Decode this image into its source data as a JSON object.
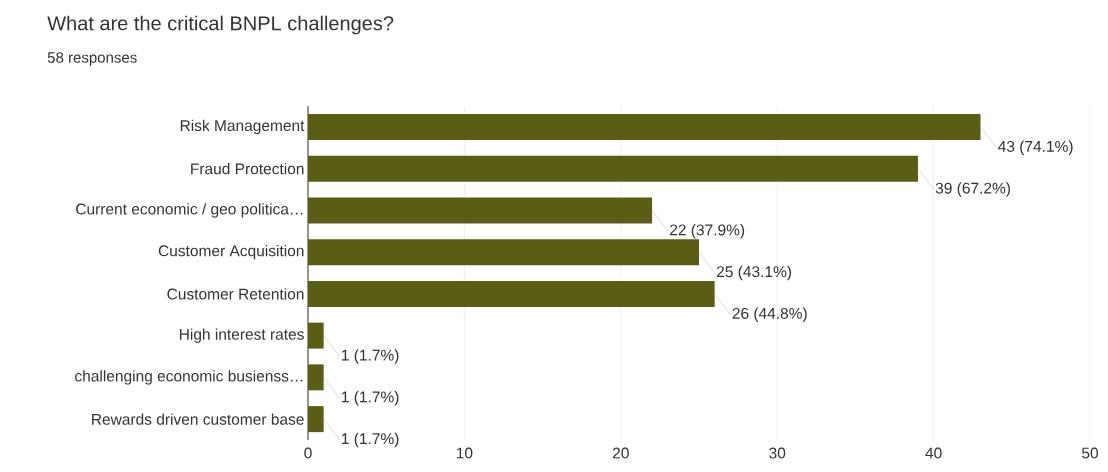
{
  "chart_data": {
    "type": "bar",
    "orientation": "horizontal",
    "title": "What are the critical BNPL challenges?",
    "subtitle": "58 responses",
    "categories": [
      "Risk Management",
      "Fraud Protection",
      "Current economic / geo politica…",
      "Customer Acquisition",
      "Customer Retention",
      "High interest rates",
      "challenging economic busienss…",
      "Rewards driven customer base"
    ],
    "values": [
      43,
      39,
      22,
      25,
      26,
      1,
      1,
      1
    ],
    "value_labels": [
      "43 (74.1%)",
      "39 (67.2%)",
      "22 (37.9%)",
      "25 (43.1%)",
      "26 (44.8%)",
      "1 (1.7%)",
      "1 (1.7%)",
      "1 (1.7%)"
    ],
    "color": "#5a5e14",
    "xlim": [
      0,
      50
    ],
    "xticks": [
      0,
      10,
      20,
      30,
      40,
      50
    ],
    "grid": "x"
  }
}
